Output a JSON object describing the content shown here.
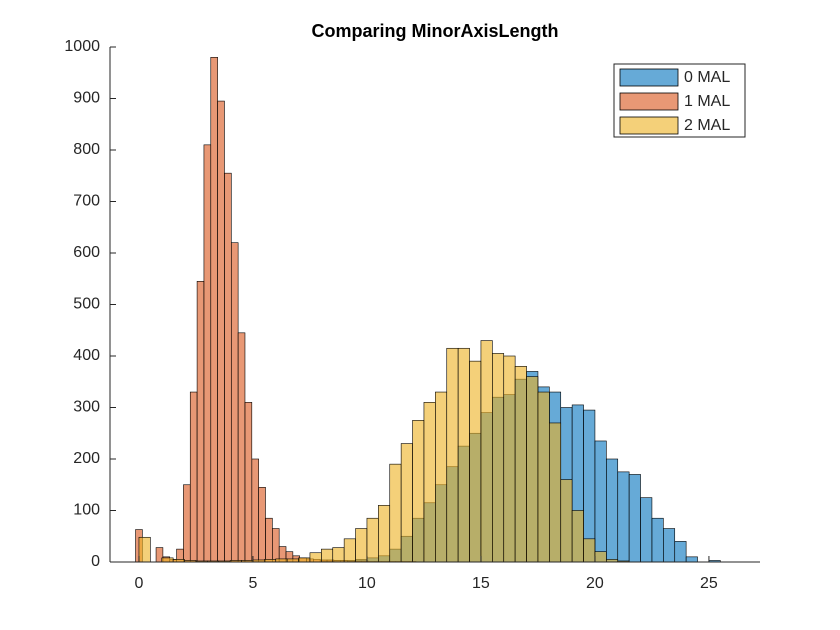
{
  "chart_data": {
    "type": "histogram",
    "title": "Comparing MinorAxisLength",
    "xlim": [
      -1.27,
      27.24
    ],
    "ylim": [
      0,
      1000
    ],
    "xticks": [
      0,
      5,
      10,
      15,
      20,
      25
    ],
    "yticks": [
      0,
      100,
      200,
      300,
      400,
      500,
      600,
      700,
      800,
      900,
      1000
    ],
    "legend": "northeast",
    "series": [
      {
        "name": "0 MAL",
        "color": "#0072BD",
        "bins": [
          8,
          8.5,
          9,
          9.5,
          10,
          10.5,
          11,
          11.5,
          12,
          12.5,
          13,
          13.5,
          14,
          14.5,
          15,
          15.5,
          16,
          16.5,
          17,
          17.5,
          18,
          18.5,
          19,
          19.5,
          20,
          20.5,
          21,
          21.5,
          22,
          22.5,
          23,
          23.5,
          24,
          24.5,
          25,
          25.5
        ],
        "values": [
          2,
          3,
          3,
          5,
          8,
          12,
          25,
          50,
          85,
          115,
          150,
          185,
          225,
          250,
          290,
          320,
          325,
          355,
          370,
          340,
          330,
          300,
          305,
          295,
          235,
          200,
          175,
          170,
          125,
          85,
          65,
          40,
          10,
          0,
          3
        ]
      },
      {
        "name": "1 MAL",
        "color": "#D95319",
        "bins": [
          -0.15,
          0.15,
          0.45,
          0.75,
          1.05,
          1.35,
          1.65,
          1.95,
          2.25,
          2.55,
          2.85,
          3.15,
          3.45,
          3.75,
          4.05,
          4.35,
          4.65,
          4.95,
          5.25,
          5.55,
          5.85,
          6.15,
          6.45,
          6.75,
          7.05,
          7.35,
          7.65,
          7.95,
          8.25,
          8.55,
          8.85,
          9.15,
          9.45,
          9.75,
          10.05,
          10.35,
          10.65,
          10.95,
          11.25,
          11.55,
          11.85,
          12.15,
          12.45,
          12.75,
          13.05
        ],
        "values": [
          63,
          0,
          0,
          28,
          10,
          5,
          25,
          150,
          330,
          545,
          810,
          980,
          895,
          755,
          620,
          445,
          310,
          200,
          145,
          85,
          65,
          30,
          20,
          12,
          8,
          6,
          5,
          4,
          4,
          3,
          3,
          2,
          2,
          2,
          1,
          1,
          1,
          1,
          1,
          1,
          1,
          0,
          0,
          0
        ]
      },
      {
        "name": "2 MAL",
        "color": "#EDB120",
        "bins": [
          0,
          0.5,
          1,
          1.5,
          2,
          2.5,
          3,
          3.5,
          4,
          4.5,
          5,
          5.5,
          6,
          6.5,
          7,
          7.5,
          8,
          8.5,
          9,
          9.5,
          10,
          10.5,
          11,
          11.5,
          12,
          12.5,
          13,
          13.5,
          14,
          14.5,
          15,
          15.5,
          16,
          16.5,
          17,
          17.5,
          18,
          18.5,
          19,
          19.5,
          20,
          20.5,
          21,
          21.5
        ],
        "values": [
          48,
          0,
          8,
          5,
          3,
          2,
          2,
          2,
          3,
          3,
          4,
          5,
          6,
          6,
          8,
          18,
          25,
          28,
          45,
          65,
          85,
          110,
          190,
          230,
          275,
          310,
          330,
          415,
          415,
          390,
          430,
          405,
          400,
          380,
          360,
          330,
          270,
          160,
          100,
          45,
          20,
          5,
          2
        ]
      }
    ]
  }
}
